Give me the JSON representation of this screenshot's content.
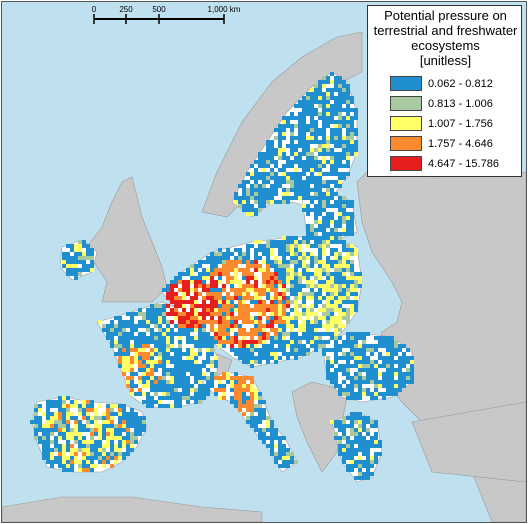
{
  "map": {
    "colors": {
      "sea": "#bfe0ef",
      "non_eu_land": "#c8c8c8",
      "eu_land_nodata": "#ffffff",
      "land_border": "#9a9a9a"
    }
  },
  "scale_bar": {
    "ticks": [
      "0",
      "250",
      "500",
      "1,000 km"
    ]
  },
  "legend": {
    "title": "Potential pressure on\nterrestrial and freshwater\necosystems\n[unitless]",
    "classes": [
      {
        "label": "0.062 - 0.812",
        "color": "#1f8fd0"
      },
      {
        "label": "0.813 - 1.006",
        "color": "#a8c8a0"
      },
      {
        "label": "1.007 - 1.756",
        "color": "#ffff66"
      },
      {
        "label": "1.757 - 4.646",
        "color": "#fb8a2e"
      },
      {
        "label": "4.647 - 15.786",
        "color": "#e61e1e"
      }
    ]
  }
}
